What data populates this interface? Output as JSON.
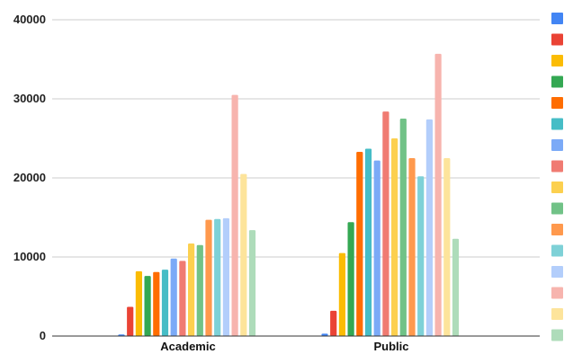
{
  "chart_data": {
    "type": "bar",
    "categories": [
      "Academic",
      "Public"
    ],
    "ylim": [
      0,
      40000
    ],
    "yticks": [
      "0",
      "10000",
      "20000",
      "30000",
      "40000"
    ],
    "grid": true,
    "legend_position": "right",
    "series": [
      {
        "color": "#4285f4",
        "values": [
          200,
          300
        ]
      },
      {
        "color": "#ea4335",
        "values": [
          3700,
          3200
        ]
      },
      {
        "color": "#fbbc04",
        "values": [
          8200,
          10500
        ]
      },
      {
        "color": "#34a853",
        "values": [
          7600,
          14400
        ]
      },
      {
        "color": "#ff6d01",
        "values": [
          8100,
          23300
        ]
      },
      {
        "color": "#46bdc6",
        "values": [
          8400,
          23700
        ]
      },
      {
        "color": "#7baaf7",
        "values": [
          9800,
          22200
        ]
      },
      {
        "color": "#f07b72",
        "values": [
          9500,
          28400
        ]
      },
      {
        "color": "#fcd04f",
        "values": [
          11700,
          25000
        ]
      },
      {
        "color": "#71c287",
        "values": [
          11500,
          27500
        ]
      },
      {
        "color": "#ff994d",
        "values": [
          14700,
          22500
        ]
      },
      {
        "color": "#7ed1d7",
        "values": [
          14800,
          20200
        ]
      },
      {
        "color": "#b3cefb",
        "values": [
          14900,
          27400
        ]
      },
      {
        "color": "#f7b4ae",
        "values": [
          30500,
          35700
        ]
      },
      {
        "color": "#fde49b",
        "values": [
          20500,
          22500
        ]
      },
      {
        "color": "#aedcba",
        "values": [
          13400,
          12300
        ]
      }
    ]
  }
}
